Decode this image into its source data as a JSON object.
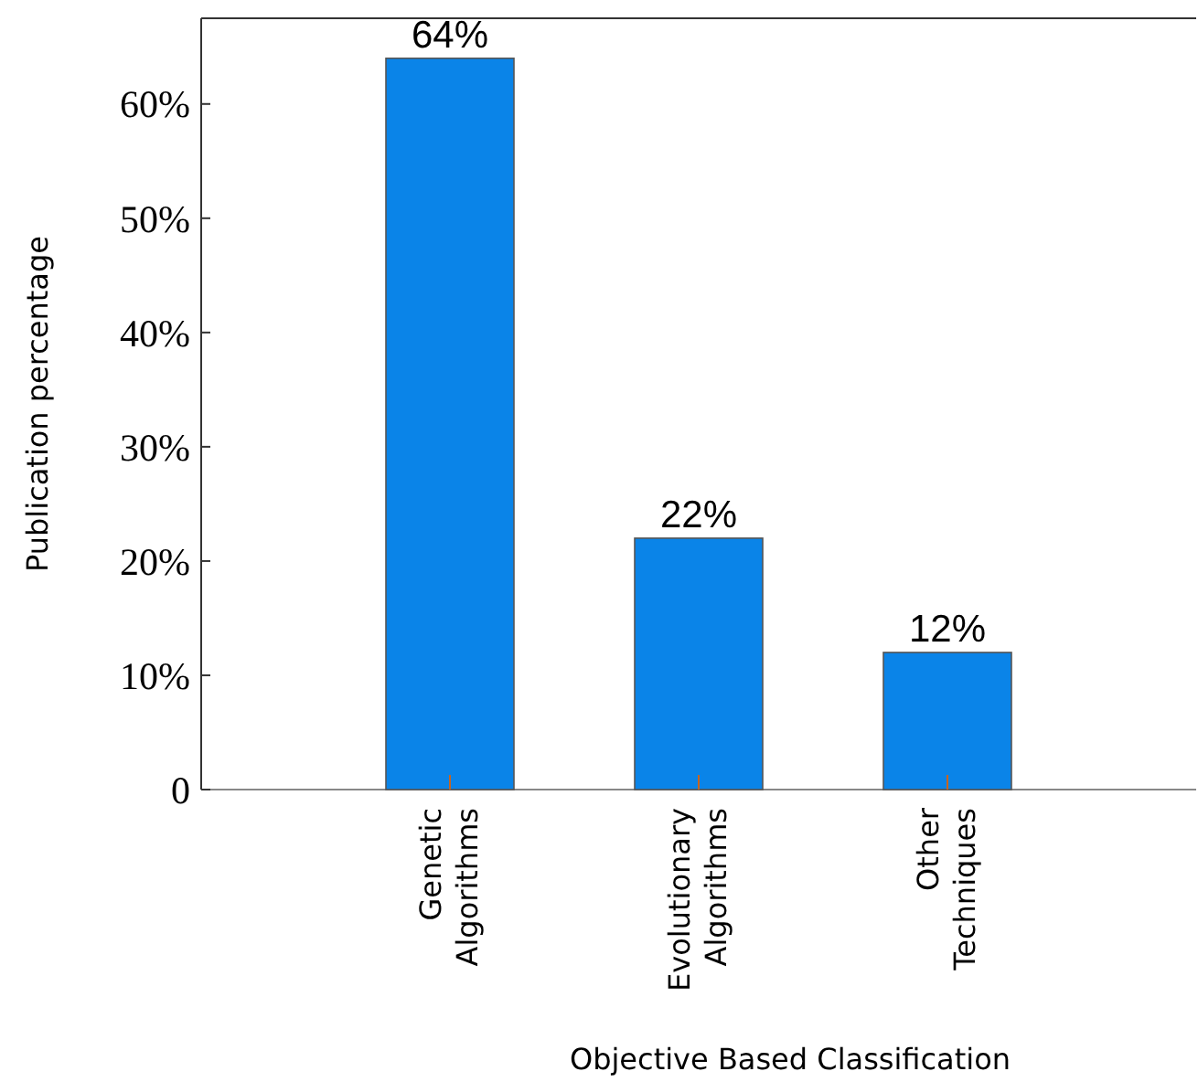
{
  "chart_data": {
    "type": "bar",
    "xlabel": "Objective Based Classification",
    "ylabel": "Publication percentage",
    "categories": [
      "Genetic Algorithms",
      "Evolutionary Algorithms",
      "Other Techniques"
    ],
    "values": [
      64,
      22,
      12
    ],
    "value_labels": [
      "64%",
      "22%",
      "12%"
    ],
    "color": "#0a84e8",
    "ylim": [
      0,
      67.5
    ],
    "yticks": [
      {
        "value": 0,
        "label": "0"
      },
      {
        "value": 10,
        "label": "10%"
      },
      {
        "value": 20,
        "label": "20%"
      },
      {
        "value": 30,
        "label": "30%"
      },
      {
        "value": 40,
        "label": "40%"
      },
      {
        "value": 50,
        "label": "50%"
      },
      {
        "value": 60,
        "label": "60%"
      }
    ],
    "grid": false
  }
}
